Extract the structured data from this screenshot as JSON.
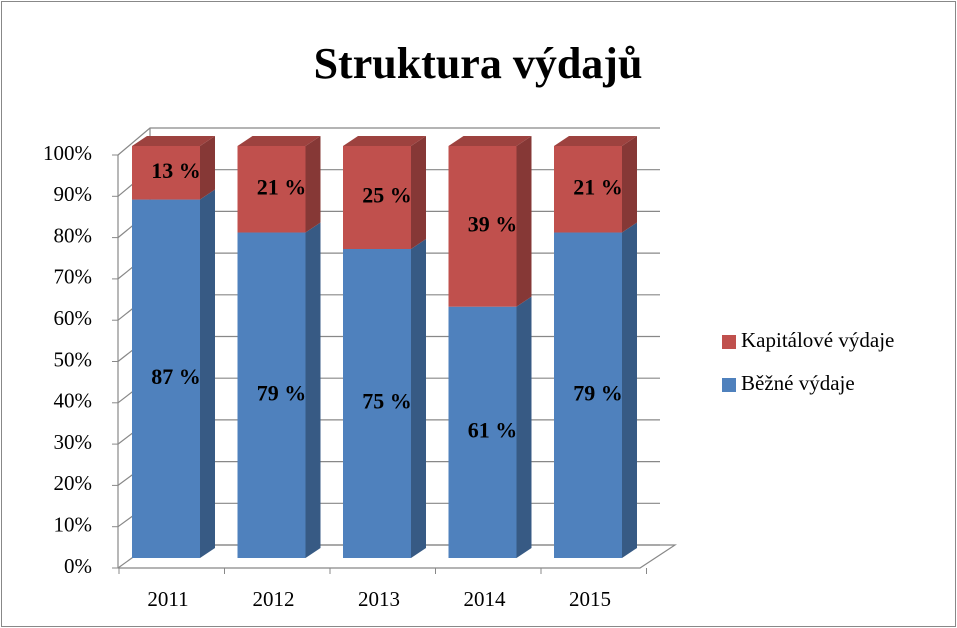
{
  "chart_data": {
    "type": "bar",
    "stacked": true,
    "title": "Struktura výdajů",
    "categories": [
      "2011",
      "2012",
      "2013",
      "2014",
      "2015"
    ],
    "series": [
      {
        "name": "Běžné výdaje",
        "color": "#4f81bd",
        "values": [
          87,
          79,
          75,
          61,
          79
        ],
        "value_labels": [
          "87 %",
          "79 %",
          "75 %",
          "61 %",
          "79 %"
        ]
      },
      {
        "name": "Kapitálové výdaje",
        "color": "#c0504d",
        "values": [
          13,
          21,
          25,
          39,
          21
        ],
        "value_labels": [
          "13 %",
          "21 %",
          "25 %",
          "39 %",
          "21 %"
        ]
      }
    ],
    "ylim": [
      0,
      100
    ],
    "yticks": [
      {
        "value": 0,
        "label": "0%"
      },
      {
        "value": 10,
        "label": "10%"
      },
      {
        "value": 20,
        "label": "20%"
      },
      {
        "value": 30,
        "label": "30%"
      },
      {
        "value": 40,
        "label": "40%"
      },
      {
        "value": 50,
        "label": "50%"
      },
      {
        "value": 60,
        "label": "60%"
      },
      {
        "value": 70,
        "label": "70%"
      },
      {
        "value": 80,
        "label": "80%"
      },
      {
        "value": 90,
        "label": "90%"
      },
      {
        "value": 100,
        "label": "100%"
      }
    ],
    "grid": true,
    "legend": "right"
  }
}
